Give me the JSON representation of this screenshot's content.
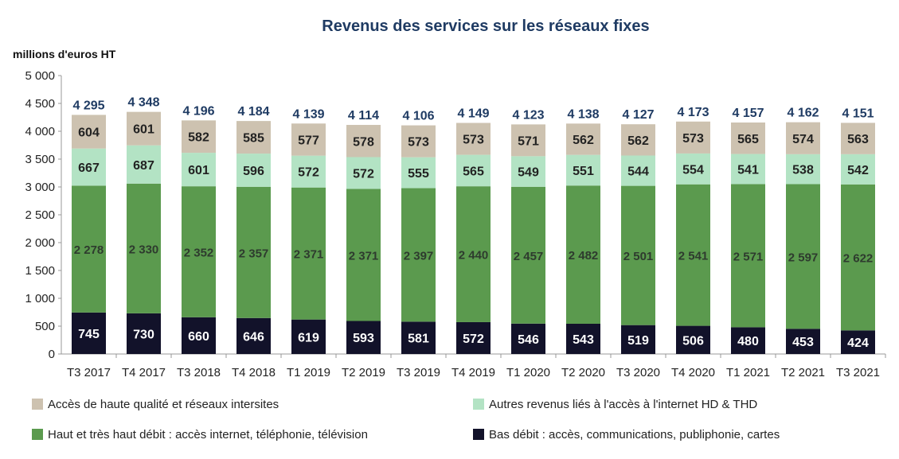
{
  "chart_data": {
    "type": "bar",
    "stacked": true,
    "title": "Revenus des services sur les réseaux fixes",
    "ylabel": "millions d'euros HT",
    "xlabel": "",
    "ylim": [
      0,
      5000
    ],
    "yticks": [
      "0",
      "500",
      "1 000",
      "1 500",
      "2 000",
      "2 500",
      "3 000",
      "3 500",
      "4 000",
      "4 500",
      "5 000"
    ],
    "grid": false,
    "legend_position": "bottom",
    "categories": [
      "T3 2017",
      "T4 2017",
      "T3 2018",
      "T4 2018",
      "T1 2019",
      "T2 2019",
      "T3 2019",
      "T4 2019",
      "T1 2020",
      "T2 2020",
      "T3 2020",
      "T4 2020",
      "T1 2021",
      "T2 2021",
      "T3 2021"
    ],
    "series": [
      {
        "name": "Bas débit : accès, communications, publiphonie, cartes",
        "color": "#12122a",
        "label_color": "#ffffff",
        "values": [
          745,
          730,
          660,
          646,
          619,
          593,
          581,
          572,
          546,
          543,
          519,
          506,
          480,
          453,
          424
        ],
        "labels": [
          "745",
          "730",
          "660",
          "646",
          "619",
          "593",
          "581",
          "572",
          "546",
          "543",
          "519",
          "506",
          "480",
          "453",
          "424"
        ]
      },
      {
        "name": "Haut et très haut débit : accès internet, téléphonie, télévision",
        "color": "#5b9a4e",
        "label_color": "#2e3b2e",
        "values": [
          2278,
          2330,
          2352,
          2357,
          2371,
          2371,
          2397,
          2440,
          2457,
          2482,
          2501,
          2541,
          2571,
          2597,
          2622
        ],
        "labels": [
          "2 278",
          "2 330",
          "2 352",
          "2 357",
          "2 371",
          "2 371",
          "2 397",
          "2 440",
          "2 457",
          "2 482",
          "2 501",
          "2 541",
          "2 571",
          "2 597",
          "2 622"
        ]
      },
      {
        "name": "Autres revenus liés à l'accès à l'internet HD & THD",
        "color": "#b3e3c4",
        "label_color": "#222222",
        "values": [
          667,
          687,
          601,
          596,
          572,
          572,
          555,
          565,
          549,
          551,
          544,
          554,
          541,
          538,
          542
        ],
        "labels": [
          "667",
          "687",
          "601",
          "596",
          "572",
          "572",
          "555",
          "565",
          "549",
          "551",
          "544",
          "554",
          "541",
          "538",
          "542"
        ]
      },
      {
        "name": "Accès de haute qualité et réseaux intersites",
        "color": "#cdc2b0",
        "label_color": "#222222",
        "values": [
          604,
          601,
          582,
          585,
          577,
          578,
          573,
          573,
          571,
          562,
          562,
          573,
          565,
          574,
          563
        ],
        "labels": [
          "604",
          "601",
          "582",
          "585",
          "577",
          "578",
          "573",
          "573",
          "571",
          "562",
          "562",
          "573",
          "565",
          "574",
          "563"
        ]
      }
    ],
    "totals": [
      4295,
      4348,
      4196,
      4184,
      4139,
      4114,
      4106,
      4149,
      4123,
      4138,
      4127,
      4173,
      4157,
      4162,
      4151
    ],
    "total_labels": [
      "4 295",
      "4 348",
      "4 196",
      "4 184",
      "4 139",
      "4 114",
      "4 106",
      "4 149",
      "4 123",
      "4 138",
      "4 127",
      "4 173",
      "4 157",
      "4 162",
      "4 151"
    ]
  }
}
